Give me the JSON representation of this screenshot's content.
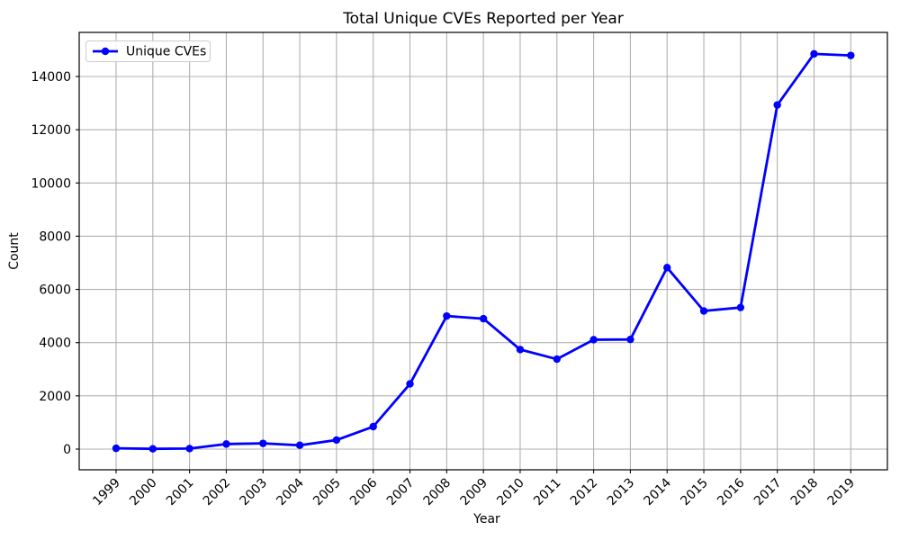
{
  "chart_data": {
    "type": "line",
    "title": "Total Unique CVEs Reported per Year",
    "xlabel": "Year",
    "ylabel": "Count",
    "legend_position": "upper left",
    "grid": true,
    "background_color": "#ffffff",
    "grid_color": "#b0b0b0",
    "spine_color": "#000000",
    "legend_border_color": "#cccccc",
    "categories": [
      1999,
      2000,
      2001,
      2002,
      2003,
      2004,
      2005,
      2006,
      2007,
      2008,
      2009,
      2010,
      2011,
      2012,
      2013,
      2014,
      2015,
      2016,
      2017,
      2018,
      2019
    ],
    "yticks": [
      0,
      2000,
      4000,
      6000,
      8000,
      10000,
      12000,
      14000
    ],
    "ylim": [
      -780,
      15660
    ],
    "series": [
      {
        "name": "Unique CVEs",
        "color": "#0000ff",
        "marker": "circle",
        "values": [
          30,
          10,
          20,
          190,
          215,
          145,
          340,
          845,
          2450,
          5000,
          4900,
          3740,
          3380,
          4110,
          4120,
          6820,
          5190,
          5320,
          12930,
          14850,
          14790
        ]
      }
    ]
  }
}
